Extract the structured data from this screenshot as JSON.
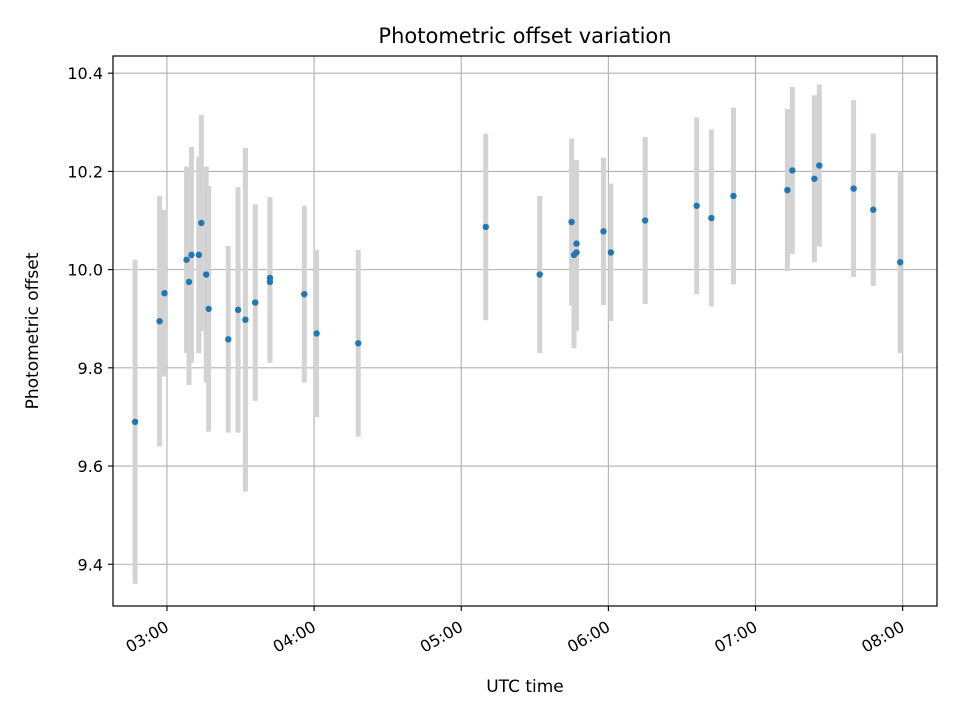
{
  "chart_data": {
    "type": "scatter",
    "title": "Photometric offset variation",
    "xlabel": "UTC time",
    "ylabel": "Photometric offset",
    "x_axis": {
      "kind": "time",
      "range": [
        "02:38",
        "08:14"
      ],
      "ticks": [
        "03:00",
        "04:00",
        "05:00",
        "06:00",
        "07:00",
        "08:00"
      ]
    },
    "y_axis": {
      "range": [
        9.315,
        10.435
      ],
      "ticks": [
        "9.4",
        "9.6",
        "9.8",
        "10.0",
        "10.2",
        "10.4"
      ]
    },
    "grid": true,
    "colors": {
      "marker": "#1f77b4",
      "errorbar": "#d3d3d3",
      "grid": "#b0b0b0"
    },
    "series": [
      {
        "points": [
          {
            "x": "02:47",
            "y": 9.69,
            "err": 0.33
          },
          {
            "x": "02:57",
            "y": 9.895,
            "err": 0.255
          },
          {
            "x": "02:59",
            "y": 9.952,
            "err": 0.17
          },
          {
            "x": "03:08",
            "y": 10.02,
            "err": 0.19
          },
          {
            "x": "03:09",
            "y": 9.975,
            "err": 0.21
          },
          {
            "x": "03:10",
            "y": 10.03,
            "err": 0.22
          },
          {
            "x": "03:13",
            "y": 10.03,
            "err": 0.2
          },
          {
            "x": "03:14",
            "y": 10.095,
            "err": 0.22
          },
          {
            "x": "03:16",
            "y": 9.99,
            "err": 0.22
          },
          {
            "x": "03:17",
            "y": 9.92,
            "err": 0.25
          },
          {
            "x": "03:25",
            "y": 9.858,
            "err": 0.19
          },
          {
            "x": "03:29",
            "y": 9.918,
            "err": 0.25
          },
          {
            "x": "03:32",
            "y": 9.898,
            "err": 0.35
          },
          {
            "x": "03:36",
            "y": 9.933,
            "err": 0.2
          },
          {
            "x": "03:42",
            "y": 9.975,
            "err": 0.165
          },
          {
            "x": "03:42",
            "y": 9.983,
            "err": 0.165
          },
          {
            "x": "03:56",
            "y": 9.95,
            "err": 0.18
          },
          {
            "x": "04:01",
            "y": 9.87,
            "err": 0.17
          },
          {
            "x": "04:18",
            "y": 9.85,
            "err": 0.19
          },
          {
            "x": "05:10",
            "y": 10.087,
            "err": 0.19
          },
          {
            "x": "05:32",
            "y": 9.99,
            "err": 0.16
          },
          {
            "x": "05:45",
            "y": 10.097,
            "err": 0.17
          },
          {
            "x": "05:46",
            "y": 10.03,
            "err": 0.19
          },
          {
            "x": "05:47",
            "y": 10.035,
            "err": 0.16
          },
          {
            "x": "05:47",
            "y": 10.053,
            "err": 0.17
          },
          {
            "x": "05:58",
            "y": 10.078,
            "err": 0.15
          },
          {
            "x": "06:01",
            "y": 10.035,
            "err": 0.14
          },
          {
            "x": "06:15",
            "y": 10.1,
            "err": 0.17
          },
          {
            "x": "06:36",
            "y": 10.13,
            "err": 0.18
          },
          {
            "x": "06:42",
            "y": 10.105,
            "err": 0.18
          },
          {
            "x": "06:51",
            "y": 10.15,
            "err": 0.18
          },
          {
            "x": "07:13",
            "y": 10.162,
            "err": 0.165
          },
          {
            "x": "07:15",
            "y": 10.202,
            "err": 0.17
          },
          {
            "x": "07:24",
            "y": 10.185,
            "err": 0.17
          },
          {
            "x": "07:26",
            "y": 10.212,
            "err": 0.165
          },
          {
            "x": "07:40",
            "y": 10.165,
            "err": 0.18
          },
          {
            "x": "07:48",
            "y": 10.122,
            "err": 0.155
          },
          {
            "x": "07:59",
            "y": 10.015,
            "err": 0.185
          }
        ]
      }
    ]
  }
}
